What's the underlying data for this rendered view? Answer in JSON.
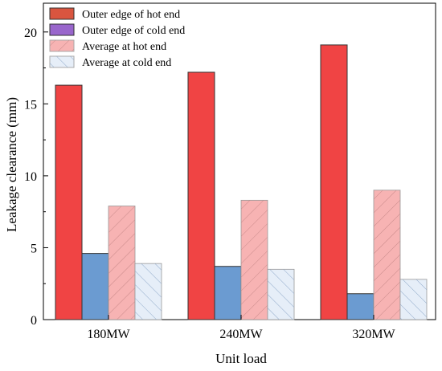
{
  "chart_data": {
    "type": "bar",
    "title": "",
    "xlabel": "Unit load",
    "ylabel": "Leakage clearance (mm)",
    "categories": [
      "180MW",
      "240MW",
      "320MW"
    ],
    "ylim": [
      0,
      22
    ],
    "yticks": [
      0,
      5,
      10,
      15,
      20
    ],
    "grid": false,
    "legend_position": "top-left",
    "series": [
      {
        "name": "Outer edge of hot end",
        "values": [
          16.3,
          17.2,
          19.1
        ],
        "color": "#f04444",
        "pattern": "solid"
      },
      {
        "name": "Outer edge of cold end",
        "values": [
          4.6,
          3.7,
          1.8
        ],
        "color": "#6b9bd1",
        "pattern": "solid"
      },
      {
        "name": "Average at hot end",
        "values": [
          7.9,
          8.3,
          9.0
        ],
        "color": "#f7b3b3",
        "pattern": "hatch-down"
      },
      {
        "name": "Average at cold end",
        "values": [
          3.9,
          3.5,
          2.8
        ],
        "color": "#e6eef8",
        "pattern": "hatch-up"
      }
    ],
    "legend_swatch_colors": [
      "#d9553f",
      "#9966cc",
      "#f7b3b3",
      "#e6eef8"
    ]
  }
}
